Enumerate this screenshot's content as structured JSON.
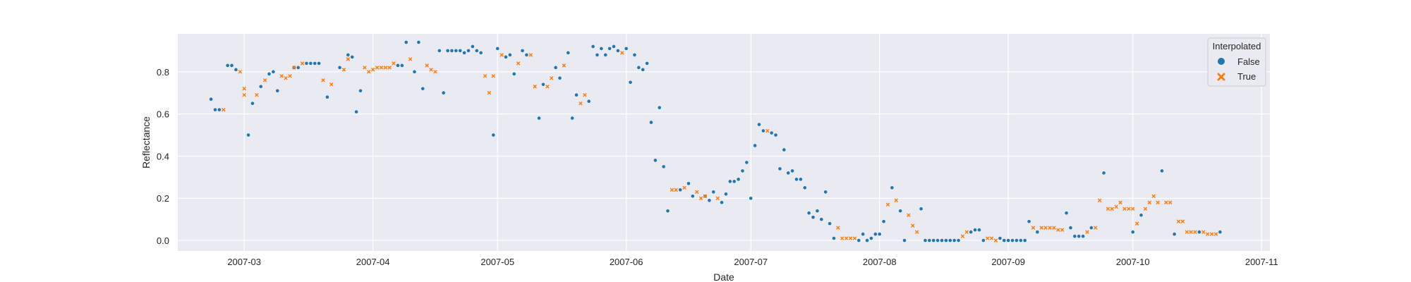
{
  "chart_data": {
    "type": "scatter",
    "title": "",
    "xlabel": "Date",
    "ylabel": "Reflectance",
    "x_axis_type": "date",
    "xlim": [
      "2007-02-13",
      "2007-11-03"
    ],
    "ylim": [
      -0.05,
      0.98
    ],
    "grid": true,
    "x_ticks": [
      "2007-03-01",
      "2007-04-01",
      "2007-05-01",
      "2007-06-01",
      "2007-07-01",
      "2007-08-01",
      "2007-09-01",
      "2007-10-01",
      "2007-11-01"
    ],
    "x_tick_labels": [
      "2007-03",
      "2007-04",
      "2007-05",
      "2007-06",
      "2007-07",
      "2007-08",
      "2007-09",
      "2007-10",
      "2007-11"
    ],
    "y_ticks": [
      0.0,
      0.2,
      0.4,
      0.6,
      0.8
    ],
    "y_tick_labels": [
      "0.0",
      "0.2",
      "0.4",
      "0.6",
      "0.8"
    ],
    "legend": {
      "title": "Interpolated",
      "position": "top-right",
      "entries": [
        {
          "label": "False",
          "marker": "circle",
          "color": "#1f77b4"
        },
        {
          "label": "True",
          "marker": "x",
          "color": "#ff7f0e"
        }
      ]
    },
    "series": [
      {
        "name": "False",
        "color": "#1f77b4",
        "marker": "circle",
        "points": [
          [
            "2007-02-21",
            0.67
          ],
          [
            "2007-02-22",
            0.62
          ],
          [
            "2007-02-23",
            0.62
          ],
          [
            "2007-02-25",
            0.83
          ],
          [
            "2007-02-26",
            0.83
          ],
          [
            "2007-02-27",
            0.81
          ],
          [
            "2007-03-02",
            0.5
          ],
          [
            "2007-03-03",
            0.65
          ],
          [
            "2007-03-05",
            0.73
          ],
          [
            "2007-03-07",
            0.79
          ],
          [
            "2007-03-08",
            0.8
          ],
          [
            "2007-03-09",
            0.71
          ],
          [
            "2007-03-13",
            0.82
          ],
          [
            "2007-03-14",
            0.82
          ],
          [
            "2007-03-16",
            0.84
          ],
          [
            "2007-03-17",
            0.84
          ],
          [
            "2007-03-18",
            0.84
          ],
          [
            "2007-03-19",
            0.84
          ],
          [
            "2007-03-21",
            0.68
          ],
          [
            "2007-03-24",
            0.82
          ],
          [
            "2007-03-26",
            0.88
          ],
          [
            "2007-03-27",
            0.87
          ],
          [
            "2007-03-28",
            0.61
          ],
          [
            "2007-03-29",
            0.71
          ],
          [
            "2007-04-07",
            0.83
          ],
          [
            "2007-04-08",
            0.83
          ],
          [
            "2007-04-09",
            0.94
          ],
          [
            "2007-04-11",
            0.8
          ],
          [
            "2007-04-12",
            0.94
          ],
          [
            "2007-04-13",
            0.72
          ],
          [
            "2007-04-17",
            0.9
          ],
          [
            "2007-04-18",
            0.7
          ],
          [
            "2007-04-19",
            0.9
          ],
          [
            "2007-04-20",
            0.9
          ],
          [
            "2007-04-21",
            0.9
          ],
          [
            "2007-04-22",
            0.9
          ],
          [
            "2007-04-23",
            0.89
          ],
          [
            "2007-04-24",
            0.9
          ],
          [
            "2007-04-25",
            0.92
          ],
          [
            "2007-04-26",
            0.9
          ],
          [
            "2007-04-27",
            0.89
          ],
          [
            "2007-04-30",
            0.5
          ],
          [
            "2007-05-01",
            0.91
          ],
          [
            "2007-05-03",
            0.87
          ],
          [
            "2007-05-04",
            0.88
          ],
          [
            "2007-05-05",
            0.79
          ],
          [
            "2007-05-07",
            0.9
          ],
          [
            "2007-05-08",
            0.88
          ],
          [
            "2007-05-11",
            0.58
          ],
          [
            "2007-05-12",
            0.74
          ],
          [
            "2007-05-15",
            0.82
          ],
          [
            "2007-05-16",
            0.77
          ],
          [
            "2007-05-18",
            0.89
          ],
          [
            "2007-05-19",
            0.58
          ],
          [
            "2007-05-20",
            0.69
          ],
          [
            "2007-05-23",
            0.66
          ],
          [
            "2007-05-24",
            0.92
          ],
          [
            "2007-05-25",
            0.88
          ],
          [
            "2007-05-26",
            0.91
          ],
          [
            "2007-05-27",
            0.88
          ],
          [
            "2007-05-28",
            0.91
          ],
          [
            "2007-05-29",
            0.92
          ],
          [
            "2007-05-30",
            0.9
          ],
          [
            "2007-06-01",
            0.91
          ],
          [
            "2007-06-02",
            0.75
          ],
          [
            "2007-06-03",
            0.88
          ],
          [
            "2007-06-04",
            0.82
          ],
          [
            "2007-06-05",
            0.81
          ],
          [
            "2007-06-06",
            0.84
          ],
          [
            "2007-06-07",
            0.56
          ],
          [
            "2007-06-08",
            0.38
          ],
          [
            "2007-06-09",
            0.63
          ],
          [
            "2007-06-10",
            0.35
          ],
          [
            "2007-06-11",
            0.14
          ],
          [
            "2007-06-14",
            0.24
          ],
          [
            "2007-06-16",
            0.27
          ],
          [
            "2007-06-17",
            0.21
          ],
          [
            "2007-06-20",
            0.21
          ],
          [
            "2007-06-21",
            0.19
          ],
          [
            "2007-06-22",
            0.23
          ],
          [
            "2007-06-24",
            0.18
          ],
          [
            "2007-06-25",
            0.22
          ],
          [
            "2007-06-26",
            0.28
          ],
          [
            "2007-06-27",
            0.28
          ],
          [
            "2007-06-28",
            0.29
          ],
          [
            "2007-06-29",
            0.33
          ],
          [
            "2007-06-30",
            0.37
          ],
          [
            "2007-07-01",
            0.2
          ],
          [
            "2007-07-02",
            0.45
          ],
          [
            "2007-07-03",
            0.55
          ],
          [
            "2007-07-04",
            0.52
          ],
          [
            "2007-07-06",
            0.51
          ],
          [
            "2007-07-07",
            0.5
          ],
          [
            "2007-07-08",
            0.34
          ],
          [
            "2007-07-09",
            0.43
          ],
          [
            "2007-07-10",
            0.32
          ],
          [
            "2007-07-11",
            0.33
          ],
          [
            "2007-07-12",
            0.29
          ],
          [
            "2007-07-13",
            0.29
          ],
          [
            "2007-07-14",
            0.25
          ],
          [
            "2007-07-15",
            0.13
          ],
          [
            "2007-07-16",
            0.11
          ],
          [
            "2007-07-17",
            0.14
          ],
          [
            "2007-07-18",
            0.1
          ],
          [
            "2007-07-19",
            0.23
          ],
          [
            "2007-07-20",
            0.08
          ],
          [
            "2007-07-21",
            0.01
          ],
          [
            "2007-07-27",
            0.0
          ],
          [
            "2007-07-28",
            0.03
          ],
          [
            "2007-07-29",
            0.0
          ],
          [
            "2007-07-30",
            0.01
          ],
          [
            "2007-07-31",
            0.03
          ],
          [
            "2007-08-01",
            0.03
          ],
          [
            "2007-08-02",
            0.09
          ],
          [
            "2007-08-04",
            0.25
          ],
          [
            "2007-08-06",
            0.14
          ],
          [
            "2007-08-07",
            0.0
          ],
          [
            "2007-08-11",
            0.15
          ],
          [
            "2007-08-12",
            0.0
          ],
          [
            "2007-08-13",
            0.0
          ],
          [
            "2007-08-14",
            0.0
          ],
          [
            "2007-08-15",
            0.0
          ],
          [
            "2007-08-16",
            0.0
          ],
          [
            "2007-08-17",
            0.0
          ],
          [
            "2007-08-18",
            0.0
          ],
          [
            "2007-08-19",
            0.0
          ],
          [
            "2007-08-20",
            0.0
          ],
          [
            "2007-08-23",
            0.04
          ],
          [
            "2007-08-24",
            0.05
          ],
          [
            "2007-08-25",
            0.05
          ],
          [
            "2007-08-26",
            0.0
          ],
          [
            "2007-08-30",
            0.01
          ],
          [
            "2007-08-31",
            0.0
          ],
          [
            "2007-09-01",
            0.0
          ],
          [
            "2007-09-02",
            0.0
          ],
          [
            "2007-09-03",
            0.0
          ],
          [
            "2007-09-04",
            0.0
          ],
          [
            "2007-09-05",
            0.0
          ],
          [
            "2007-09-06",
            0.09
          ],
          [
            "2007-09-08",
            0.04
          ],
          [
            "2007-09-15",
            0.13
          ],
          [
            "2007-09-16",
            0.06
          ],
          [
            "2007-09-17",
            0.02
          ],
          [
            "2007-09-18",
            0.02
          ],
          [
            "2007-09-19",
            0.02
          ],
          [
            "2007-09-21",
            0.06
          ],
          [
            "2007-09-24",
            0.32
          ],
          [
            "2007-10-01",
            0.04
          ],
          [
            "2007-10-03",
            0.12
          ],
          [
            "2007-10-08",
            0.33
          ],
          [
            "2007-10-11",
            0.03
          ],
          [
            "2007-10-17",
            0.04
          ],
          [
            "2007-10-22",
            0.04
          ]
        ]
      },
      {
        "name": "True",
        "color": "#ff7f0e",
        "marker": "x",
        "points": [
          [
            "2007-02-24",
            0.62
          ],
          [
            "2007-02-28",
            0.8
          ],
          [
            "2007-03-01",
            0.72
          ],
          [
            "2007-03-01",
            0.69
          ],
          [
            "2007-03-04",
            0.69
          ],
          [
            "2007-03-06",
            0.76
          ],
          [
            "2007-03-10",
            0.78
          ],
          [
            "2007-03-11",
            0.77
          ],
          [
            "2007-03-12",
            0.78
          ],
          [
            "2007-03-13",
            0.82
          ],
          [
            "2007-03-15",
            0.84
          ],
          [
            "2007-03-20",
            0.76
          ],
          [
            "2007-03-22",
            0.74
          ],
          [
            "2007-03-25",
            0.81
          ],
          [
            "2007-03-26",
            0.86
          ],
          [
            "2007-03-30",
            0.82
          ],
          [
            "2007-03-31",
            0.8
          ],
          [
            "2007-04-01",
            0.81
          ],
          [
            "2007-04-02",
            0.82
          ],
          [
            "2007-04-03",
            0.82
          ],
          [
            "2007-04-04",
            0.82
          ],
          [
            "2007-04-05",
            0.82
          ],
          [
            "2007-04-06",
            0.84
          ],
          [
            "2007-04-10",
            0.86
          ],
          [
            "2007-04-14",
            0.83
          ],
          [
            "2007-04-15",
            0.81
          ],
          [
            "2007-04-16",
            0.8
          ],
          [
            "2007-04-28",
            0.78
          ],
          [
            "2007-04-29",
            0.7
          ],
          [
            "2007-04-30",
            0.78
          ],
          [
            "2007-05-02",
            0.88
          ],
          [
            "2007-05-06",
            0.84
          ],
          [
            "2007-05-09",
            0.88
          ],
          [
            "2007-05-10",
            0.73
          ],
          [
            "2007-05-13",
            0.73
          ],
          [
            "2007-05-14",
            0.77
          ],
          [
            "2007-05-17",
            0.83
          ],
          [
            "2007-05-21",
            0.65
          ],
          [
            "2007-05-22",
            0.69
          ],
          [
            "2007-05-31",
            0.89
          ],
          [
            "2007-06-12",
            0.24
          ],
          [
            "2007-06-13",
            0.24
          ],
          [
            "2007-06-15",
            0.25
          ],
          [
            "2007-06-18",
            0.23
          ],
          [
            "2007-06-19",
            0.2
          ],
          [
            "2007-06-20",
            0.21
          ],
          [
            "2007-06-23",
            0.2
          ],
          [
            "2007-07-05",
            0.52
          ],
          [
            "2007-07-22",
            0.06
          ],
          [
            "2007-07-23",
            0.01
          ],
          [
            "2007-07-24",
            0.01
          ],
          [
            "2007-07-25",
            0.01
          ],
          [
            "2007-07-26",
            0.01
          ],
          [
            "2007-08-03",
            0.17
          ],
          [
            "2007-08-05",
            0.19
          ],
          [
            "2007-08-08",
            0.12
          ],
          [
            "2007-08-09",
            0.07
          ],
          [
            "2007-08-10",
            0.04
          ],
          [
            "2007-08-21",
            0.02
          ],
          [
            "2007-08-22",
            0.04
          ],
          [
            "2007-08-27",
            0.01
          ],
          [
            "2007-08-28",
            0.01
          ],
          [
            "2007-08-29",
            0.0
          ],
          [
            "2007-09-07",
            0.06
          ],
          [
            "2007-09-09",
            0.06
          ],
          [
            "2007-09-10",
            0.06
          ],
          [
            "2007-09-11",
            0.06
          ],
          [
            "2007-09-12",
            0.06
          ],
          [
            "2007-09-13",
            0.05
          ],
          [
            "2007-09-14",
            0.05
          ],
          [
            "2007-09-20",
            0.04
          ],
          [
            "2007-09-22",
            0.06
          ],
          [
            "2007-09-23",
            0.19
          ],
          [
            "2007-09-25",
            0.15
          ],
          [
            "2007-09-26",
            0.15
          ],
          [
            "2007-09-27",
            0.16
          ],
          [
            "2007-09-28",
            0.18
          ],
          [
            "2007-09-29",
            0.15
          ],
          [
            "2007-09-30",
            0.15
          ],
          [
            "2007-10-01",
            0.15
          ],
          [
            "2007-10-02",
            0.08
          ],
          [
            "2007-10-04",
            0.15
          ],
          [
            "2007-10-05",
            0.18
          ],
          [
            "2007-10-06",
            0.21
          ],
          [
            "2007-10-07",
            0.18
          ],
          [
            "2007-10-09",
            0.18
          ],
          [
            "2007-10-10",
            0.18
          ],
          [
            "2007-10-12",
            0.09
          ],
          [
            "2007-10-13",
            0.09
          ],
          [
            "2007-10-14",
            0.04
          ],
          [
            "2007-10-15",
            0.04
          ],
          [
            "2007-10-16",
            0.04
          ],
          [
            "2007-10-18",
            0.04
          ],
          [
            "2007-10-19",
            0.03
          ],
          [
            "2007-10-20",
            0.03
          ],
          [
            "2007-10-21",
            0.03
          ]
        ]
      }
    ]
  }
}
